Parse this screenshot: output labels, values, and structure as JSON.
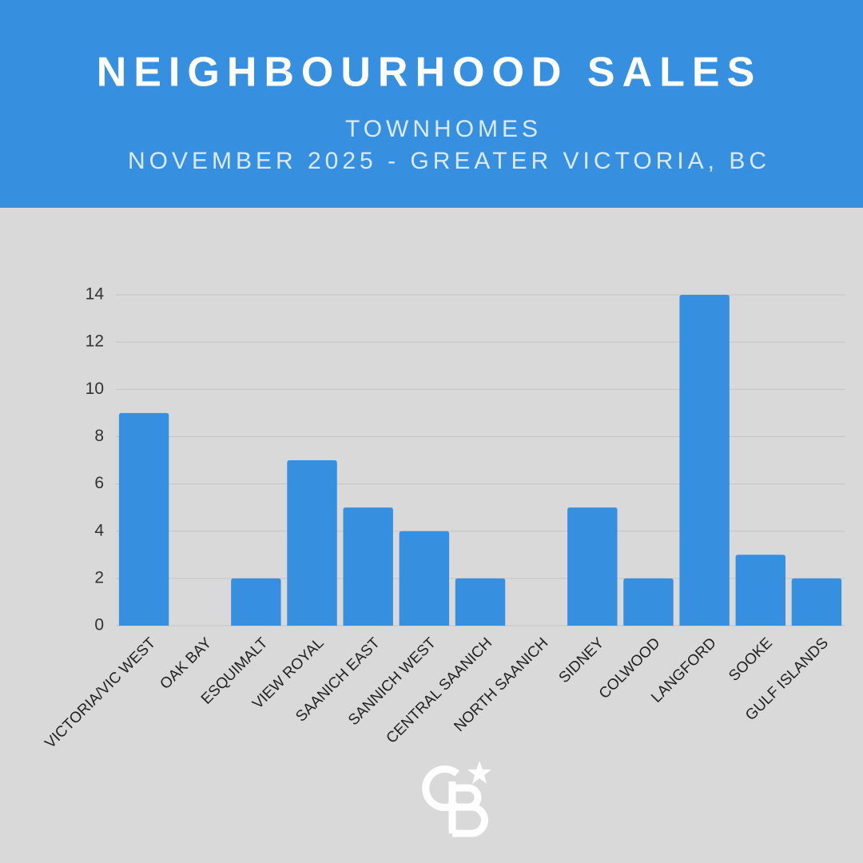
{
  "chart_data": {
    "type": "bar",
    "title": "NEIGHBOURHOOD SALES",
    "subtitle": [
      "TOWNHOMES",
      "NOVEMBER 2025 - GREATER VICTORIA, BC"
    ],
    "categories": [
      "VICTORIA/VIC WEST",
      "OAK BAY",
      "ESQUIMALT",
      "VIEW ROYAL",
      "SAANICH EAST",
      "SANNICH WEST",
      "CENTRAL SAANICH",
      "NORTH SAANICH",
      "SIDNEY",
      "COLWOOD",
      "LANGFORD",
      "SOOKE",
      "GULF ISLANDS"
    ],
    "values": [
      9,
      0,
      2,
      7,
      5,
      4,
      2,
      0,
      5,
      2,
      14,
      3,
      2
    ],
    "color": "#378fe0",
    "ylim": [
      0,
      14
    ],
    "yticks": [
      0,
      2,
      4,
      6,
      8,
      10,
      12,
      14
    ],
    "grid": true
  }
}
